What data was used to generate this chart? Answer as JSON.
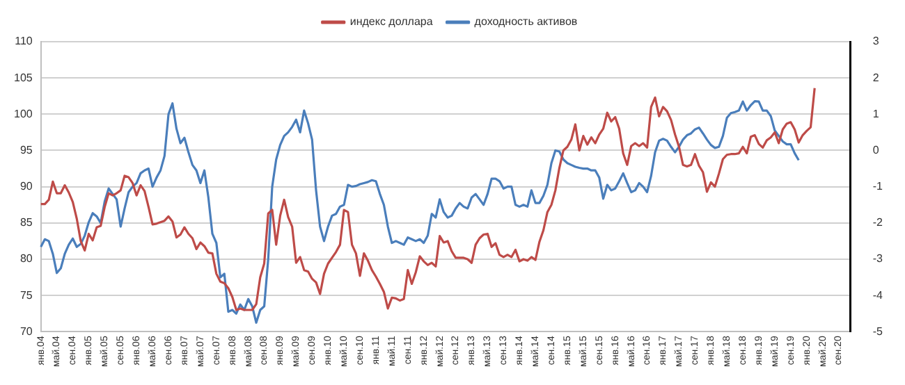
{
  "chart_data": {
    "type": "line",
    "categories": [
      "янв.04",
      null,
      null,
      null,
      "май.04",
      null,
      null,
      null,
      "сен.04",
      null,
      null,
      null,
      "янв.05",
      null,
      null,
      null,
      "май.05",
      null,
      null,
      null,
      "сен.05",
      null,
      null,
      null,
      "янв.06",
      null,
      null,
      null,
      "май.06",
      null,
      null,
      null,
      "сен.06",
      null,
      null,
      null,
      "янв.07",
      null,
      null,
      null,
      "май.07",
      null,
      null,
      null,
      "сен.07",
      null,
      null,
      null,
      "янв.08",
      null,
      null,
      null,
      "май.08",
      null,
      null,
      null,
      "сен.08",
      null,
      null,
      null,
      "янв.09",
      null,
      null,
      null,
      "май.09",
      null,
      null,
      null,
      "сен.09",
      null,
      null,
      null,
      "янв.10",
      null,
      null,
      null,
      "май.10",
      null,
      null,
      null,
      "сен.10",
      null,
      null,
      null,
      "янв.11",
      null,
      null,
      null,
      "май.11",
      null,
      null,
      null,
      "сен.11",
      null,
      null,
      null,
      "янв.12",
      null,
      null,
      null,
      "май.12",
      null,
      null,
      null,
      "сен.12",
      null,
      null,
      null,
      "янв.13",
      null,
      null,
      null,
      "май.13",
      null,
      null,
      null,
      "сен.13",
      null,
      null,
      null,
      "янв.14",
      null,
      null,
      null,
      "май.14",
      null,
      null,
      null,
      "сен.14",
      null,
      null,
      null,
      "янв.15",
      null,
      null,
      null,
      "май.15",
      null,
      null,
      null,
      "сен.15",
      null,
      null,
      null,
      "янв.16",
      null,
      null,
      null,
      "май.16",
      null,
      null,
      null,
      "сен.16",
      null,
      null,
      null,
      "янв.17",
      null,
      null,
      null,
      "май.17",
      null,
      null,
      null,
      "сен.17",
      null,
      null,
      null,
      "янв.18",
      null,
      null,
      null,
      "май.18",
      null,
      null,
      null,
      "сен.18",
      null,
      null,
      null,
      "янв.19",
      null,
      null,
      null,
      "май.19",
      null,
      null,
      null,
      "сен.19",
      null,
      null,
      null,
      "янв.20",
      null,
      null,
      null,
      "май.20",
      null,
      null,
      null,
      "сен.20",
      null,
      null,
      null
    ],
    "series": [
      {
        "name": "индекс доллара",
        "color": "#be4b48",
        "values": [
          87.6,
          87.6,
          88.2,
          90.7,
          89.1,
          89.1,
          90.2,
          89.2,
          87.9,
          85.6,
          82.5,
          81.2,
          83.5,
          82.6,
          84.4,
          84.6,
          87.2,
          89.1,
          88.8,
          89.1,
          89.5,
          91.5,
          91.3,
          90.5,
          88.8,
          90.2,
          89.4,
          87.2,
          84.8,
          84.9,
          85.1,
          85.3,
          85.9,
          85.2,
          83.0,
          83.4,
          84.4,
          83.5,
          82.9,
          81.4,
          82.3,
          81.8,
          80.9,
          80.8,
          78.0,
          76.9,
          76.7,
          76.0,
          74.8,
          73.0,
          73.2,
          73.0,
          73.0,
          73.0,
          73.8,
          77.5,
          79.4,
          86.3,
          86.8,
          82.0,
          86.0,
          88.2,
          85.8,
          84.5,
          79.5,
          80.3,
          78.5,
          78.3,
          77.3,
          76.8,
          75.2,
          78.0,
          79.4,
          80.2,
          81.0,
          82.0,
          86.8,
          86.5,
          82.0,
          80.8,
          77.7,
          80.8,
          79.8,
          78.5,
          77.6,
          76.6,
          75.5,
          73.2,
          74.7,
          74.6,
          74.3,
          74.5,
          78.5,
          76.6,
          78.2,
          80.4,
          79.7,
          79.2,
          79.5,
          79.0,
          83.2,
          82.3,
          82.5,
          81.1,
          80.2,
          80.2,
          80.2,
          80.0,
          79.5,
          82.0,
          82.9,
          83.4,
          83.5,
          81.7,
          82.2,
          80.6,
          80.3,
          80.6,
          80.3,
          81.3,
          79.7,
          80.0,
          79.8,
          80.3,
          79.9,
          82.4,
          84.0,
          86.5,
          87.5,
          89.5,
          92.6,
          95.0,
          95.5,
          96.5,
          98.6,
          95.0,
          97.0,
          95.8,
          96.8,
          96.0,
          97.2,
          98.0,
          100.2,
          99.0,
          99.6,
          98.0,
          94.6,
          93.0,
          95.6,
          96.0,
          95.6,
          96.0,
          95.4,
          101.0,
          102.3,
          99.7,
          101.0,
          100.4,
          99.2,
          97.2,
          95.5,
          93.0,
          92.8,
          93.0,
          94.5,
          92.9,
          92.0,
          89.3,
          90.6,
          90.0,
          91.8,
          93.8,
          94.4,
          94.5,
          94.5,
          94.6,
          95.5,
          94.6,
          96.9,
          97.1,
          95.9,
          95.4,
          96.4,
          96.8,
          97.5,
          96.0,
          97.9,
          98.7,
          98.9,
          97.9,
          96.1,
          97.1,
          97.7,
          98.2,
          103.6,
          null,
          null,
          null,
          null,
          null,
          null,
          null,
          null,
          null
        ]
      },
      {
        "name": "доходность активов",
        "color": "#4a7ebb",
        "axis": "y2",
        "values": [
          -2.66,
          -2.45,
          -2.5,
          -2.85,
          -3.38,
          -3.25,
          -2.85,
          -2.6,
          -2.43,
          -2.66,
          -2.58,
          -2.35,
          -1.98,
          -1.73,
          -1.82,
          -2.0,
          -1.41,
          -1.05,
          -1.2,
          -1.35,
          -2.1,
          -1.6,
          -1.15,
          -1.0,
          -0.9,
          -0.63,
          -0.55,
          -0.5,
          -1.0,
          -0.75,
          -0.55,
          -0.15,
          1.0,
          1.3,
          0.6,
          0.2,
          0.35,
          -0.05,
          -0.4,
          -0.55,
          -0.9,
          -0.55,
          -1.3,
          -2.3,
          -2.55,
          -3.5,
          -3.4,
          -4.45,
          -4.4,
          -4.5,
          -4.25,
          -4.4,
          -4.1,
          -4.3,
          -4.75,
          -4.4,
          -4.3,
          -3.0,
          -1.0,
          -0.25,
          0.15,
          0.4,
          0.5,
          0.65,
          0.85,
          0.5,
          1.1,
          0.75,
          0.3,
          -1.1,
          -2.1,
          -2.5,
          -2.1,
          -1.8,
          -1.75,
          -1.55,
          -1.5,
          -0.95,
          -1.0,
          -0.98,
          -0.93,
          -0.9,
          -0.87,
          -0.82,
          -0.85,
          -1.2,
          -1.5,
          -2.1,
          -2.55,
          -2.5,
          -2.55,
          -2.6,
          -2.4,
          -2.45,
          -2.5,
          -2.45,
          -2.55,
          -2.35,
          -1.75,
          -1.85,
          -1.35,
          -1.7,
          -1.85,
          -1.8,
          -1.6,
          -1.45,
          -1.55,
          -1.6,
          -1.3,
          -1.2,
          -1.35,
          -1.5,
          -1.2,
          -0.78,
          -0.78,
          -0.85,
          -1.05,
          -1.0,
          -1.0,
          -1.5,
          -1.55,
          -1.5,
          -1.55,
          -1.1,
          -1.45,
          -1.45,
          -1.25,
          -0.95,
          -0.35,
          0.0,
          -0.03,
          -0.25,
          -0.35,
          -0.4,
          -0.45,
          -0.48,
          -0.5,
          -0.5,
          -0.55,
          -0.55,
          -0.75,
          -1.33,
          -0.95,
          -1.1,
          -1.05,
          -0.85,
          -0.63,
          -0.9,
          -1.15,
          -1.1,
          -0.9,
          -1.0,
          -1.15,
          -0.7,
          -0.05,
          0.27,
          0.32,
          0.27,
          0.1,
          -0.05,
          0.1,
          0.3,
          0.42,
          0.47,
          0.58,
          0.63,
          0.47,
          0.3,
          0.15,
          0.07,
          0.1,
          0.4,
          0.9,
          1.03,
          1.06,
          1.1,
          1.35,
          1.1,
          1.25,
          1.36,
          1.35,
          1.1,
          1.1,
          0.95,
          0.55,
          0.4,
          0.25,
          0.17,
          0.17,
          -0.08,
          -0.27,
          null,
          null,
          null,
          null,
          null,
          null,
          null,
          null,
          null,
          null,
          null,
          null,
          null
        ]
      }
    ],
    "ylim": [
      70,
      110
    ],
    "yticks": [
      70,
      75,
      80,
      85,
      90,
      95,
      100,
      105,
      110
    ],
    "y2lim": [
      -5,
      3
    ],
    "y2ticks": [
      -5,
      -4,
      -3,
      -2,
      -1,
      0,
      1,
      2,
      3
    ],
    "grid": "y",
    "legend": "top",
    "marker": "none",
    "line_style": "solid"
  }
}
